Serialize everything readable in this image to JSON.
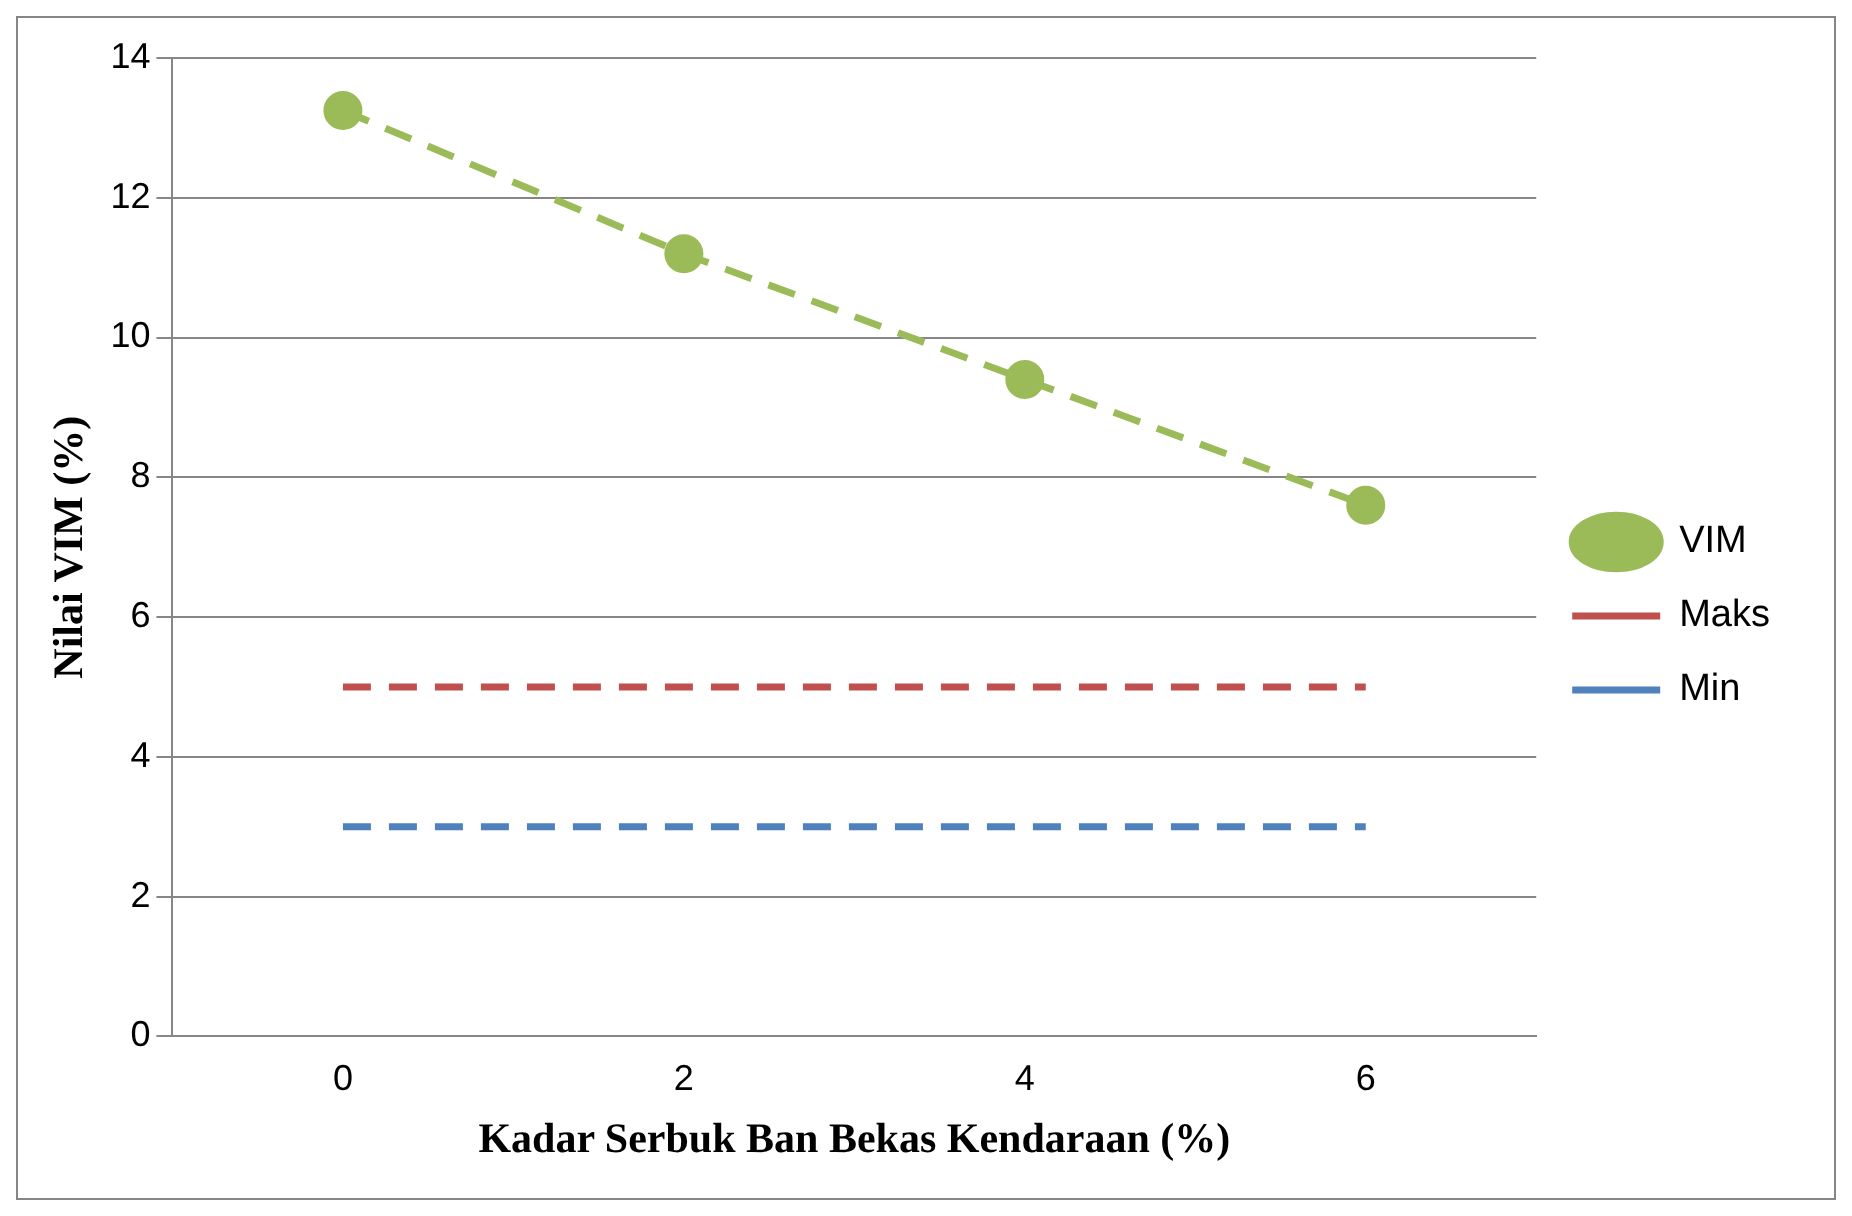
{
  "chart_data": {
    "type": "line",
    "xlabel": "Kadar Serbuk Ban Bekas Kendaraan (%)",
    "ylabel": "Nilai VIM (%)",
    "categories": [
      "0",
      "2",
      "4",
      "6"
    ],
    "series": [
      {
        "name": "VIM",
        "color": "#9bbb59",
        "values": [
          13.25,
          11.2,
          9.4,
          7.6
        ],
        "marker": "circle"
      },
      {
        "name": "Maks",
        "color": "#c0504d",
        "values": [
          5,
          5,
          5,
          5
        ],
        "marker": "none"
      },
      {
        "name": "Min",
        "color": "#4f81bd",
        "values": [
          3,
          3,
          3,
          3
        ],
        "marker": "none"
      }
    ],
    "ylim": [
      0,
      14
    ],
    "yticks": [
      0,
      2,
      4,
      6,
      8,
      10,
      12,
      14
    ],
    "grid": "y",
    "legend": "right",
    "line_style": "dashed"
  }
}
